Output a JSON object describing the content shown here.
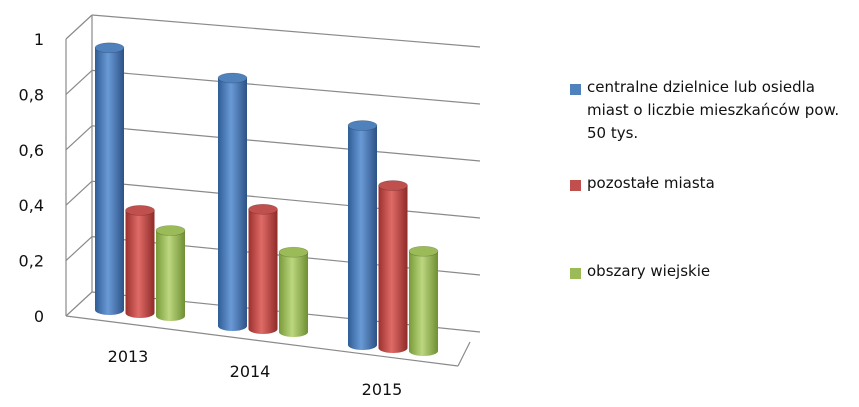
{
  "chart_data": {
    "type": "bar",
    "categories": [
      "2013",
      "2014",
      "2015"
    ],
    "series": [
      {
        "name": "centralne dzielnice lub osiedla miast o liczbie mieszkańców pow. 50 tys.",
        "values": [
          0.92,
          0.87,
          0.77
        ],
        "color": "#4f81bd"
      },
      {
        "name": "pozostałe miasta",
        "values": [
          0.36,
          0.42,
          0.57
        ],
        "color": "#c0504d"
      },
      {
        "name": "obszary wiejskie",
        "values": [
          0.3,
          0.28,
          0.35
        ],
        "color": "#9bbb59"
      }
    ],
    "yticks": [
      "0",
      "0,2",
      "0,4",
      "0,6",
      "0,8",
      "1"
    ],
    "ylim": [
      0,
      1
    ],
    "grid": true,
    "legend_position": "right",
    "style": "3d-cylinder"
  }
}
